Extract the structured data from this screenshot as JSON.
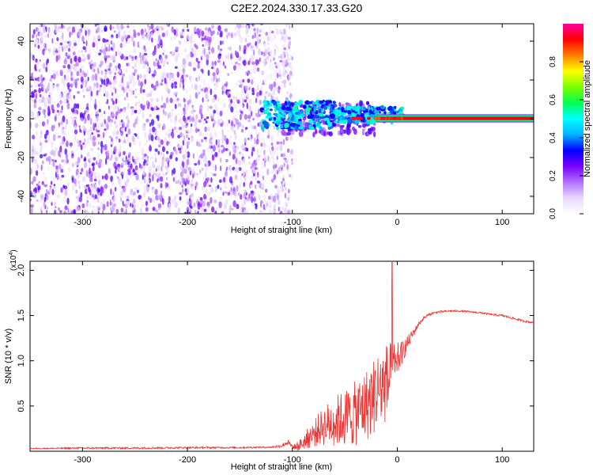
{
  "title": "C2E2.2024.330.17.33.G20",
  "chart_data": [
    {
      "type": "heatmap",
      "xlabel": "Height of straight line (km)",
      "ylabel": "Frequency (Hz)",
      "xlim": [
        -350,
        130
      ],
      "ylim": [
        -49,
        49
      ],
      "xticks": [
        -300,
        -200,
        -100,
        0,
        100
      ],
      "yticks": [
        -40,
        -20,
        0,
        20,
        40
      ],
      "grid": false,
      "colorbar": {
        "label": "Normalized spectral amplitude",
        "range": [
          0,
          1
        ],
        "ticks": [
          "0.0",
          "0.2",
          "0.4",
          "0.6",
          "0.8"
        ],
        "colors": [
          "#ffffff",
          "#e8d8ff",
          "#b070ff",
          "#7a00ff",
          "#0000ff",
          "#00b4ff",
          "#00ffff",
          "#00ff50",
          "#7aff00",
          "#ffff00",
          "#ff8000",
          "#ff0000",
          "#ff00a0"
        ]
      },
      "regions": [
        {
          "name": "noise",
          "x": [
            -350,
            -100
          ],
          "y": [
            -49,
            49
          ],
          "amplitude": [
            0.05,
            0.3
          ]
        },
        {
          "name": "tone",
          "x": [
            -130,
            130
          ],
          "y": [
            -0.7,
            1.1
          ],
          "amplitude": [
            0.4,
            1.0
          ]
        }
      ]
    },
    {
      "type": "line",
      "xlabel": "Height of straight line (km)",
      "ylabel": "SNR (10 * v/v)",
      "yscale_label": "(x10",
      "yscale_exponent": "4",
      "xlim": [
        -350,
        130
      ],
      "ylim": [
        0,
        2.1
      ],
      "xticks": [
        -300,
        -200,
        -100,
        0,
        100
      ],
      "yticks": [
        0.5,
        1.0,
        1.5,
        2.0
      ],
      "ytick_labels": [
        "0.5",
        "1.0",
        "1.5",
        "2.0"
      ],
      "line_color": "#ee3333",
      "series": [
        {
          "x": [
            -350,
            -300,
            -250,
            -200,
            -150,
            -120,
            -110,
            -105,
            -100,
            -95,
            -90,
            -85,
            -80,
            -75,
            -70,
            -65,
            -60,
            -55,
            -50,
            -45,
            -40,
            -35,
            -30,
            -25,
            -20,
            -15,
            -10,
            -5,
            -2,
            0,
            5,
            10,
            15,
            20,
            25,
            30,
            35,
            40,
            50,
            60,
            70,
            80,
            90,
            100,
            110,
            120,
            130
          ],
          "y": [
            0.03,
            0.035,
            0.035,
            0.04,
            0.04,
            0.045,
            0.06,
            0.1,
            0.05,
            0.06,
            0.1,
            0.16,
            0.2,
            0.26,
            0.3,
            0.33,
            0.36,
            0.38,
            0.4,
            0.42,
            0.45,
            0.5,
            0.55,
            0.6,
            0.7,
            0.75,
            0.8,
            0.85,
            0.95,
            1.0,
            1.1,
            1.2,
            1.3,
            1.4,
            1.47,
            1.51,
            1.53,
            1.54,
            1.55,
            1.55,
            1.54,
            1.53,
            1.51,
            1.5,
            1.47,
            1.44,
            1.42
          ],
          "noise": [
            0.005,
            0.01,
            0.01,
            0.01,
            0.01,
            0.01,
            0.02,
            0.04,
            0.02,
            0.05,
            0.08,
            0.12,
            0.15,
            0.18,
            0.22,
            0.25,
            0.28,
            0.3,
            0.32,
            0.34,
            0.36,
            0.38,
            0.4,
            0.42,
            0.44,
            0.45,
            0.45,
            0.4,
            0.3,
            0.2,
            0.12,
            0.08,
            0.05,
            0.03,
            0.02,
            0.015,
            0.012,
            0.01,
            0.01,
            0.01,
            0.01,
            0.01,
            0.01,
            0.012,
            0.012,
            0.012,
            0.012
          ]
        }
      ],
      "peak": {
        "x": -5,
        "y": 2.1
      }
    }
  ]
}
